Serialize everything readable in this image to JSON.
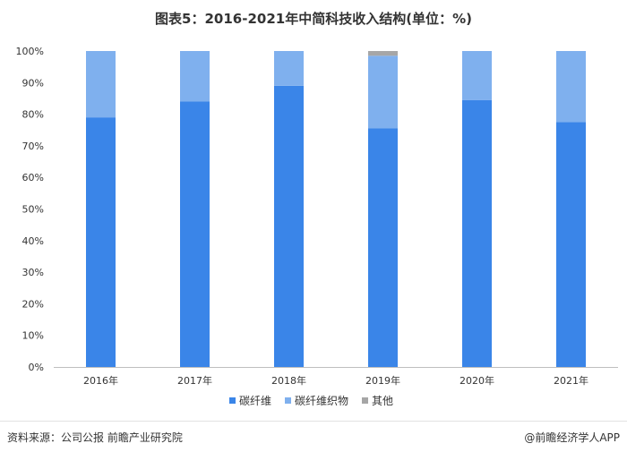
{
  "chart_data": {
    "type": "bar",
    "stacked": true,
    "title": "图表5：2016-2021年中简科技收入结构(单位：%)",
    "categories": [
      "2016年",
      "2017年",
      "2018年",
      "2019年",
      "2020年",
      "2021年"
    ],
    "series": [
      {
        "name": "碳纤维",
        "color": "#3a85e8",
        "values": [
          79,
          84,
          89,
          75.5,
          84.5,
          77.5
        ]
      },
      {
        "name": "碳纤维织物",
        "color": "#7fb0ee",
        "values": [
          21,
          16,
          11,
          23,
          15.5,
          22.5
        ]
      },
      {
        "name": "其他",
        "color": "#a6a6a6",
        "values": [
          0,
          0,
          0,
          1.5,
          0,
          0
        ]
      }
    ],
    "ylim": [
      0,
      100
    ],
    "yticks": [
      "0%",
      "10%",
      "20%",
      "30%",
      "40%",
      "50%",
      "60%",
      "70%",
      "80%",
      "90%",
      "100%"
    ],
    "legend_position": "bottom",
    "grid": false
  },
  "footer": {
    "source": "资料来源：公司公报 前瞻产业研究院",
    "brand": "@前瞻经济学人APP"
  },
  "watermark": "前瞻产业研究院"
}
